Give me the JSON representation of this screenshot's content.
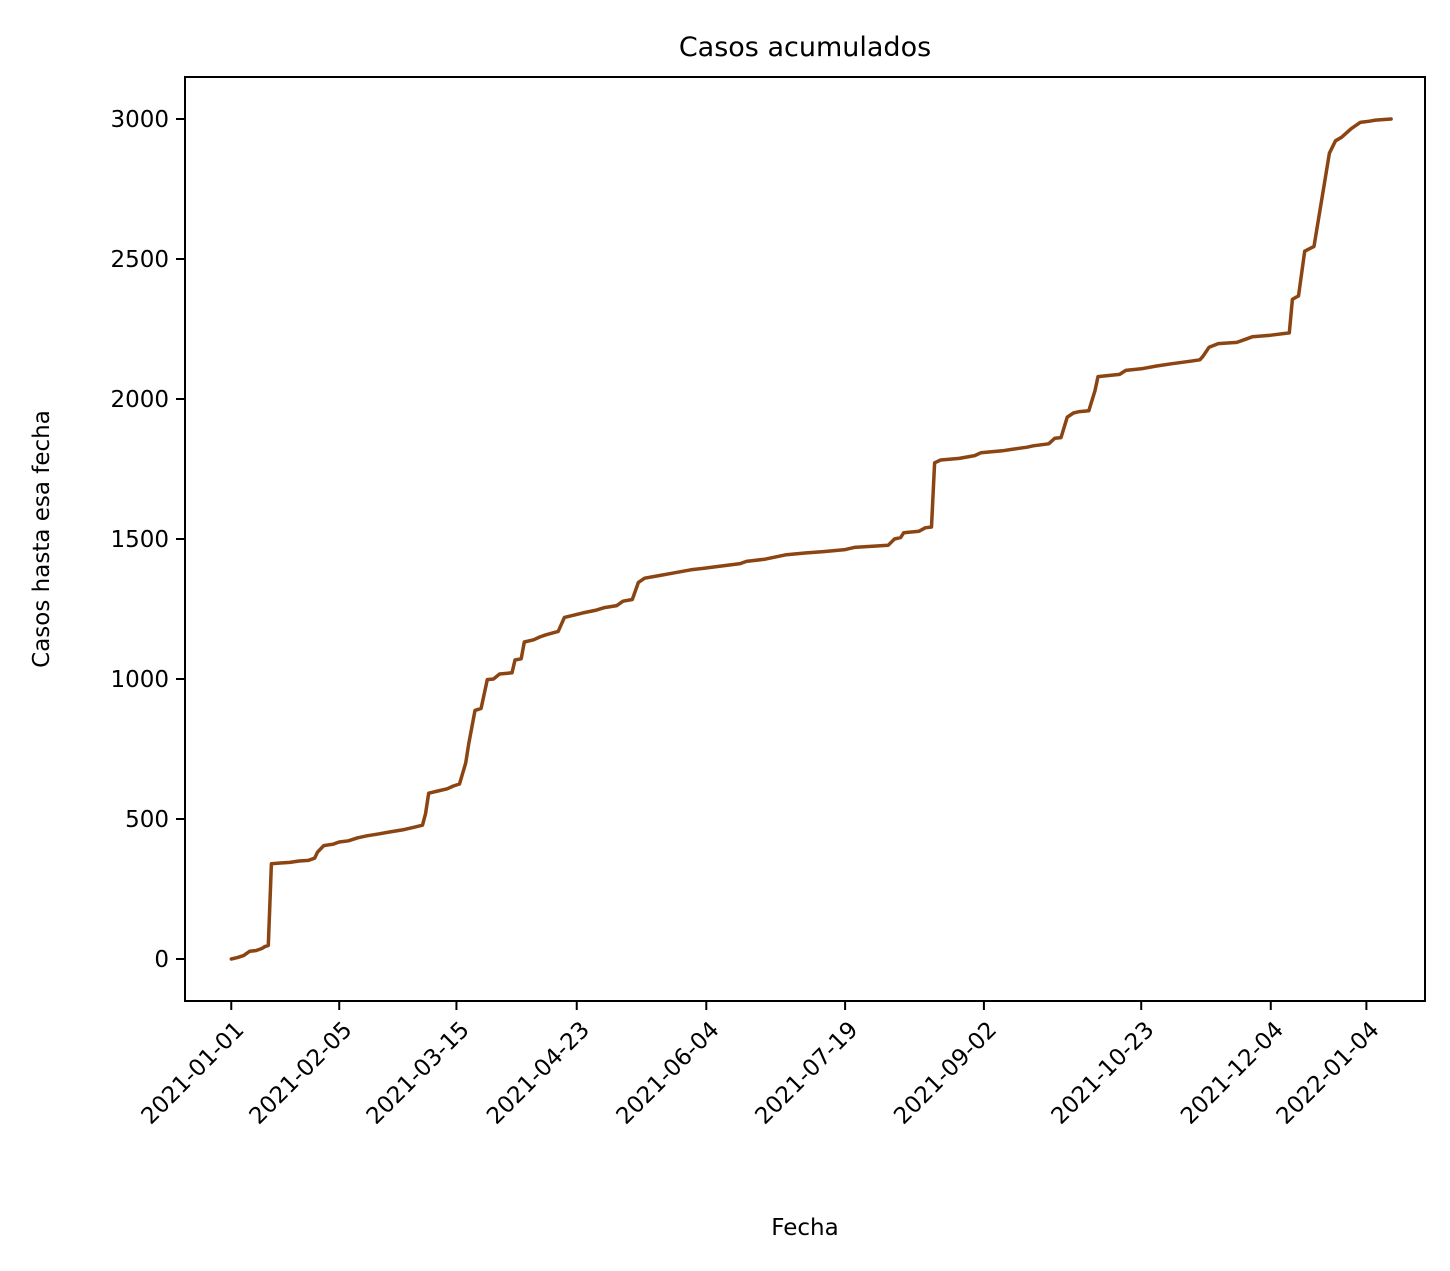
{
  "chart_data": {
    "type": "line",
    "title": "Casos acumulados",
    "xlabel": "Fecha",
    "ylabel": "Casos hasta esa fecha",
    "x_type": "date",
    "x_tick_labels": [
      "2021-01-01",
      "2021-02-05",
      "2021-03-15",
      "2021-04-23",
      "2021-06-04",
      "2021-07-19",
      "2021-09-02",
      "2021-10-23",
      "2021-12-04",
      "2022-01-04"
    ],
    "y_ticks": [
      0,
      500,
      1000,
      1500,
      2000,
      2500,
      3000
    ],
    "ylim": [
      -150,
      3150
    ],
    "xlim": [
      "2020-12-17",
      "2022-01-23"
    ],
    "grid": false,
    "legend": "none",
    "series": [
      {
        "color": "#8b4513",
        "points": [
          [
            "2021-01-01",
            0
          ],
          [
            "2021-01-03",
            5
          ],
          [
            "2021-01-05",
            12
          ],
          [
            "2021-01-07",
            28
          ],
          [
            "2021-01-09",
            30
          ],
          [
            "2021-01-11",
            38
          ],
          [
            "2021-01-12",
            45
          ],
          [
            "2021-01-13",
            48
          ],
          [
            "2021-01-14",
            340
          ],
          [
            "2021-01-17",
            343
          ],
          [
            "2021-01-20",
            345
          ],
          [
            "2021-01-23",
            350
          ],
          [
            "2021-01-26",
            352
          ],
          [
            "2021-01-28",
            360
          ],
          [
            "2021-01-29",
            382
          ],
          [
            "2021-01-31",
            405
          ],
          [
            "2021-02-03",
            410
          ],
          [
            "2021-02-05",
            418
          ],
          [
            "2021-02-08",
            422
          ],
          [
            "2021-02-11",
            433
          ],
          [
            "2021-02-14",
            440
          ],
          [
            "2021-02-18",
            447
          ],
          [
            "2021-02-22",
            455
          ],
          [
            "2021-02-26",
            462
          ],
          [
            "2021-03-01",
            470
          ],
          [
            "2021-03-04",
            478
          ],
          [
            "2021-03-05",
            520
          ],
          [
            "2021-03-06",
            592
          ],
          [
            "2021-03-09",
            600
          ],
          [
            "2021-03-12",
            608
          ],
          [
            "2021-03-14",
            618
          ],
          [
            "2021-03-16",
            625
          ],
          [
            "2021-03-18",
            700
          ],
          [
            "2021-03-19",
            770
          ],
          [
            "2021-03-21",
            888
          ],
          [
            "2021-03-23",
            895
          ],
          [
            "2021-03-25",
            998
          ],
          [
            "2021-03-27",
            1000
          ],
          [
            "2021-03-29",
            1018
          ],
          [
            "2021-04-02",
            1022
          ],
          [
            "2021-04-03",
            1068
          ],
          [
            "2021-04-05",
            1072
          ],
          [
            "2021-04-06",
            1132
          ],
          [
            "2021-04-09",
            1140
          ],
          [
            "2021-04-11",
            1150
          ],
          [
            "2021-04-13",
            1158
          ],
          [
            "2021-04-17",
            1170
          ],
          [
            "2021-04-19",
            1220
          ],
          [
            "2021-04-22",
            1228
          ],
          [
            "2021-04-25",
            1236
          ],
          [
            "2021-04-29",
            1245
          ],
          [
            "2021-05-02",
            1255
          ],
          [
            "2021-05-06",
            1262
          ],
          [
            "2021-05-08",
            1278
          ],
          [
            "2021-05-11",
            1284
          ],
          [
            "2021-05-13",
            1345
          ],
          [
            "2021-05-15",
            1360
          ],
          [
            "2021-05-19",
            1368
          ],
          [
            "2021-05-24",
            1378
          ],
          [
            "2021-05-30",
            1390
          ],
          [
            "2021-06-03",
            1395
          ],
          [
            "2021-06-08",
            1402
          ],
          [
            "2021-06-15",
            1412
          ],
          [
            "2021-06-17",
            1420
          ],
          [
            "2021-06-23",
            1428
          ],
          [
            "2021-06-30",
            1444
          ],
          [
            "2021-07-06",
            1450
          ],
          [
            "2021-07-12",
            1455
          ],
          [
            "2021-07-19",
            1462
          ],
          [
            "2021-07-22",
            1470
          ],
          [
            "2021-08-02",
            1478
          ],
          [
            "2021-08-04",
            1500
          ],
          [
            "2021-08-06",
            1505
          ],
          [
            "2021-08-07",
            1522
          ],
          [
            "2021-08-12",
            1528
          ],
          [
            "2021-08-14",
            1540
          ],
          [
            "2021-08-16",
            1543
          ],
          [
            "2021-08-17",
            1772
          ],
          [
            "2021-08-19",
            1782
          ],
          [
            "2021-08-25",
            1788
          ],
          [
            "2021-08-30",
            1798
          ],
          [
            "2021-09-01",
            1808
          ],
          [
            "2021-09-08",
            1815
          ],
          [
            "2021-09-11",
            1820
          ],
          [
            "2021-09-16",
            1828
          ],
          [
            "2021-09-18",
            1833
          ],
          [
            "2021-09-23",
            1840
          ],
          [
            "2021-09-25",
            1860
          ],
          [
            "2021-09-27",
            1862
          ],
          [
            "2021-09-29",
            1935
          ],
          [
            "2021-10-01",
            1950
          ],
          [
            "2021-10-03",
            1955
          ],
          [
            "2021-10-06",
            1958
          ],
          [
            "2021-10-08",
            2030
          ],
          [
            "2021-10-09",
            2080
          ],
          [
            "2021-10-16",
            2088
          ],
          [
            "2021-10-18",
            2102
          ],
          [
            "2021-10-23",
            2108
          ],
          [
            "2021-10-28",
            2118
          ],
          [
            "2021-11-02",
            2126
          ],
          [
            "2021-11-08",
            2135
          ],
          [
            "2021-11-11",
            2140
          ],
          [
            "2021-11-12",
            2152
          ],
          [
            "2021-11-14",
            2185
          ],
          [
            "2021-11-17",
            2198
          ],
          [
            "2021-11-23",
            2202
          ],
          [
            "2021-11-25",
            2210
          ],
          [
            "2021-11-28",
            2222
          ],
          [
            "2021-12-04",
            2228
          ],
          [
            "2021-12-10",
            2236
          ],
          [
            "2021-12-11",
            2356
          ],
          [
            "2021-12-12",
            2362
          ],
          [
            "2021-12-13",
            2368
          ],
          [
            "2021-12-15",
            2528
          ],
          [
            "2021-12-18",
            2545
          ],
          [
            "2021-12-23",
            2878
          ],
          [
            "2021-12-25",
            2922
          ],
          [
            "2021-12-27",
            2935
          ],
          [
            "2021-12-30",
            2965
          ],
          [
            "2022-01-02",
            2988
          ],
          [
            "2022-01-05",
            2992
          ],
          [
            "2022-01-07",
            2996
          ],
          [
            "2022-01-12",
            3000
          ]
        ]
      }
    ]
  }
}
